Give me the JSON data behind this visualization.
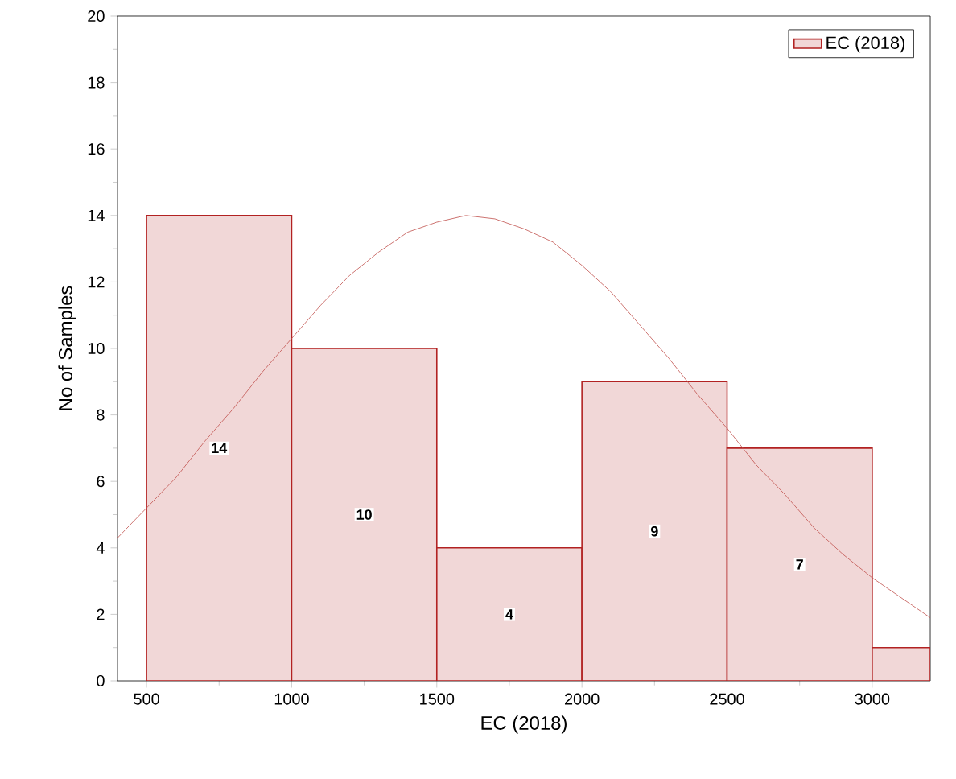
{
  "chart_data": {
    "type": "histogram",
    "xlabel": "EC (2018)",
    "ylabel": "No of Samples",
    "bins": [
      500,
      1000,
      1500,
      2000,
      2500,
      3000,
      3200
    ],
    "series": [
      {
        "name": "EC (2018)",
        "color": "#b22222",
        "values": [
          14,
          10,
          4,
          9,
          7,
          1
        ],
        "value_labels": [
          "14",
          "10",
          "4",
          "9",
          "7",
          null
        ]
      },
      {
        "type": "line",
        "color": "#c0504d",
        "x": [
          400,
          500,
          600,
          700,
          800,
          900,
          1000,
          1100,
          1200,
          1300,
          1400,
          1500,
          1600,
          1700,
          1800,
          1900,
          2000,
          2100,
          2200,
          2300,
          2400,
          2500,
          2600,
          2700,
          2800,
          2900,
          3000,
          3100,
          3200
        ],
        "values": [
          4.3,
          5.2,
          6.1,
          7.2,
          8.2,
          9.3,
          10.3,
          11.3,
          12.2,
          12.9,
          13.5,
          13.8,
          14.0,
          13.9,
          13.6,
          13.2,
          12.5,
          11.7,
          10.7,
          9.7,
          8.6,
          7.6,
          6.5,
          5.6,
          4.6,
          3.8,
          3.1,
          2.5,
          1.9
        ]
      }
    ],
    "xlim": [
      400,
      3200
    ],
    "xticks": [
      500,
      1000,
      1500,
      2000,
      2500,
      3000
    ],
    "ylim": [
      0,
      20
    ],
    "yticks": [
      0,
      2,
      4,
      6,
      8,
      10,
      12,
      14,
      16,
      18,
      20
    ],
    "legend": "top right",
    "grid": false
  }
}
